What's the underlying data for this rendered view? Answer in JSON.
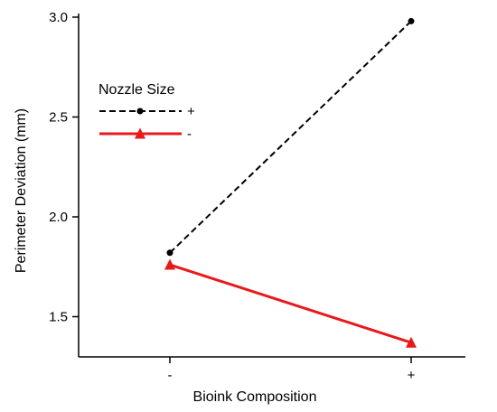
{
  "chart_data": {
    "type": "line",
    "title": "",
    "xlabel": "Bioink Composition",
    "ylabel": "Perimeter Deviation (mm)",
    "categories": [
      "-",
      "+"
    ],
    "ylim": [
      1.3,
      3.05
    ],
    "yticks": [
      1.5,
      2.0,
      2.5,
      3.0
    ],
    "ytick_labels": [
      "1.5",
      "2.0",
      "2.5",
      "3.0"
    ],
    "grid": false,
    "legend": {
      "title": "Nozzle Size",
      "placement": "top-left"
    },
    "series": [
      {
        "name": "+",
        "values": [
          1.82,
          2.98
        ],
        "color": "#000000",
        "line_style": "dashed",
        "marker": "circle"
      },
      {
        "name": "-",
        "values": [
          1.76,
          1.37
        ],
        "color": "#e8191b",
        "line_style": "solid",
        "marker": "triangle"
      }
    ]
  }
}
